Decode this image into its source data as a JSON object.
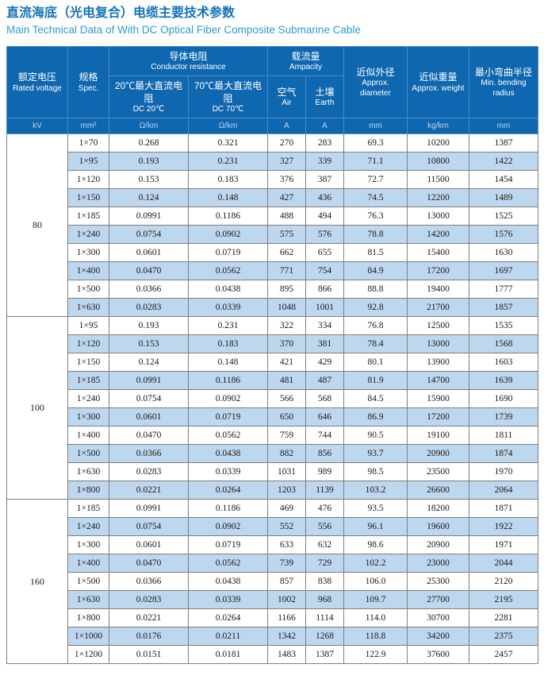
{
  "title": {
    "zh": "直流海底（光电复合）电缆主要技术参数",
    "en": "Main Technical Data of With DC Optical Fiber Composite Submarine Cable"
  },
  "colors": {
    "header_bg": "#0f67b0",
    "header_border": "#4a8cc2",
    "alt_row": "#bdd7ee",
    "grid": "#7f7f7f",
    "title_zh": "#1273b8",
    "title_en": "#2e9bd6",
    "unit_text": "#b9d6ec"
  },
  "table": {
    "headers": {
      "voltage": {
        "zh": "额定电压",
        "en": "Rated voltage"
      },
      "spec": {
        "zh": "规格",
        "en": "Spec."
      },
      "resistance": {
        "zh": "导体电阻",
        "en": "Conductor resistance"
      },
      "dc20": {
        "zh": "20℃最大直流电阻",
        "en": "DC 20℃"
      },
      "dc70": {
        "zh": "70℃最大直流电阻",
        "en": "DC 70℃"
      },
      "ampacity": {
        "zh": "载流量",
        "en": "Ampacity"
      },
      "air": {
        "zh": "空气",
        "en": "Air"
      },
      "earth": {
        "zh": "土壤",
        "en": "Earth"
      },
      "diameter": {
        "zh": "近似外径",
        "en": "Approx. diameter"
      },
      "weight": {
        "zh": "近似重量",
        "en": "Approx. weight"
      },
      "bending": {
        "zh": "最小弯曲半径",
        "en": "Min. bending radius"
      }
    },
    "units": [
      "kV",
      "mm²",
      "Ω/km",
      "Ω/km",
      "A",
      "A",
      "mm",
      "kg/km",
      "mm"
    ],
    "groups": [
      {
        "voltage": "80",
        "rows": [
          [
            "1×70",
            "0.268",
            "0.321",
            "270",
            "283",
            "69.3",
            "10200",
            "1387"
          ],
          [
            "1×95",
            "0.193",
            "0.231",
            "327",
            "339",
            "71.1",
            "10800",
            "1422"
          ],
          [
            "1×120",
            "0.153",
            "0.183",
            "376",
            "387",
            "72.7",
            "11500",
            "1454"
          ],
          [
            "1×150",
            "0.124",
            "0.148",
            "427",
            "436",
            "74.5",
            "12200",
            "1489"
          ],
          [
            "1×185",
            "0.0991",
            "0.1186",
            "488",
            "494",
            "76.3",
            "13000",
            "1525"
          ],
          [
            "1×240",
            "0.0754",
            "0.0902",
            "575",
            "576",
            "78.8",
            "14200",
            "1576"
          ],
          [
            "1×300",
            "0.0601",
            "0.0719",
            "662",
            "655",
            "81.5",
            "15400",
            "1630"
          ],
          [
            "1×400",
            "0.0470",
            "0.0562",
            "771",
            "754",
            "84.9",
            "17200",
            "1697"
          ],
          [
            "1×500",
            "0.0366",
            "0.0438",
            "895",
            "866",
            "88.8",
            "19400",
            "1777"
          ],
          [
            "1×630",
            "0.0283",
            "0.0339",
            "1048",
            "1001",
            "92.8",
            "21700",
            "1857"
          ]
        ]
      },
      {
        "voltage": "100",
        "rows": [
          [
            "1×95",
            "0.193",
            "0.231",
            "322",
            "334",
            "76.8",
            "12500",
            "1535"
          ],
          [
            "1×120",
            "0.153",
            "0.183",
            "370",
            "381",
            "78.4",
            "13000",
            "1568"
          ],
          [
            "1×150",
            "0.124",
            "0.148",
            "421",
            "429",
            "80.1",
            "13900",
            "1603"
          ],
          [
            "1×185",
            "0.0991",
            "0.1186",
            "481",
            "487",
            "81.9",
            "14700",
            "1639"
          ],
          [
            "1×240",
            "0.0754",
            "0.0902",
            "566",
            "568",
            "84.5",
            "15900",
            "1690"
          ],
          [
            "1×300",
            "0.0601",
            "0.0719",
            "650",
            "646",
            "86.9",
            "17200",
            "1739"
          ],
          [
            "1×400",
            "0.0470",
            "0.0562",
            "759",
            "744",
            "90.5",
            "19100",
            "1811"
          ],
          [
            "1×500",
            "0.0366",
            "0.0438",
            "882",
            "856",
            "93.7",
            "20900",
            "1874"
          ],
          [
            "1×630",
            "0.0283",
            "0.0339",
            "1031",
            "989",
            "98.5",
            "23500",
            "1970"
          ],
          [
            "1×800",
            "0.0221",
            "0.0264",
            "1203",
            "1139",
            "103.2",
            "26600",
            "2064"
          ]
        ]
      },
      {
        "voltage": "160",
        "rows": [
          [
            "1×185",
            "0.0991",
            "0.1186",
            "469",
            "476",
            "93.5",
            "18200",
            "1871"
          ],
          [
            "1×240",
            "0.0754",
            "0.0902",
            "552",
            "556",
            "96.1",
            "19600",
            "1922"
          ],
          [
            "1×300",
            "0.0601",
            "0.0719",
            "633",
            "632",
            "98.6",
            "20900",
            "1971"
          ],
          [
            "1×400",
            "0.0470",
            "0.0562",
            "739",
            "729",
            "102.2",
            "23000",
            "2044"
          ],
          [
            "1×500",
            "0.0366",
            "0.0438",
            "857",
            "838",
            "106.0",
            "25300",
            "2120"
          ],
          [
            "1×630",
            "0.0283",
            "0.0339",
            "1002",
            "968",
            "109.7",
            "27700",
            "2195"
          ],
          [
            "1×800",
            "0.0221",
            "0.0264",
            "1166",
            "1114",
            "114.0",
            "30700",
            "2281"
          ],
          [
            "1×1000",
            "0.0176",
            "0.0211",
            "1342",
            "1268",
            "118.8",
            "34200",
            "2375"
          ],
          [
            "1×1200",
            "0.0151",
            "0.0181",
            "1483",
            "1387",
            "122.9",
            "37600",
            "2457"
          ]
        ]
      }
    ]
  }
}
